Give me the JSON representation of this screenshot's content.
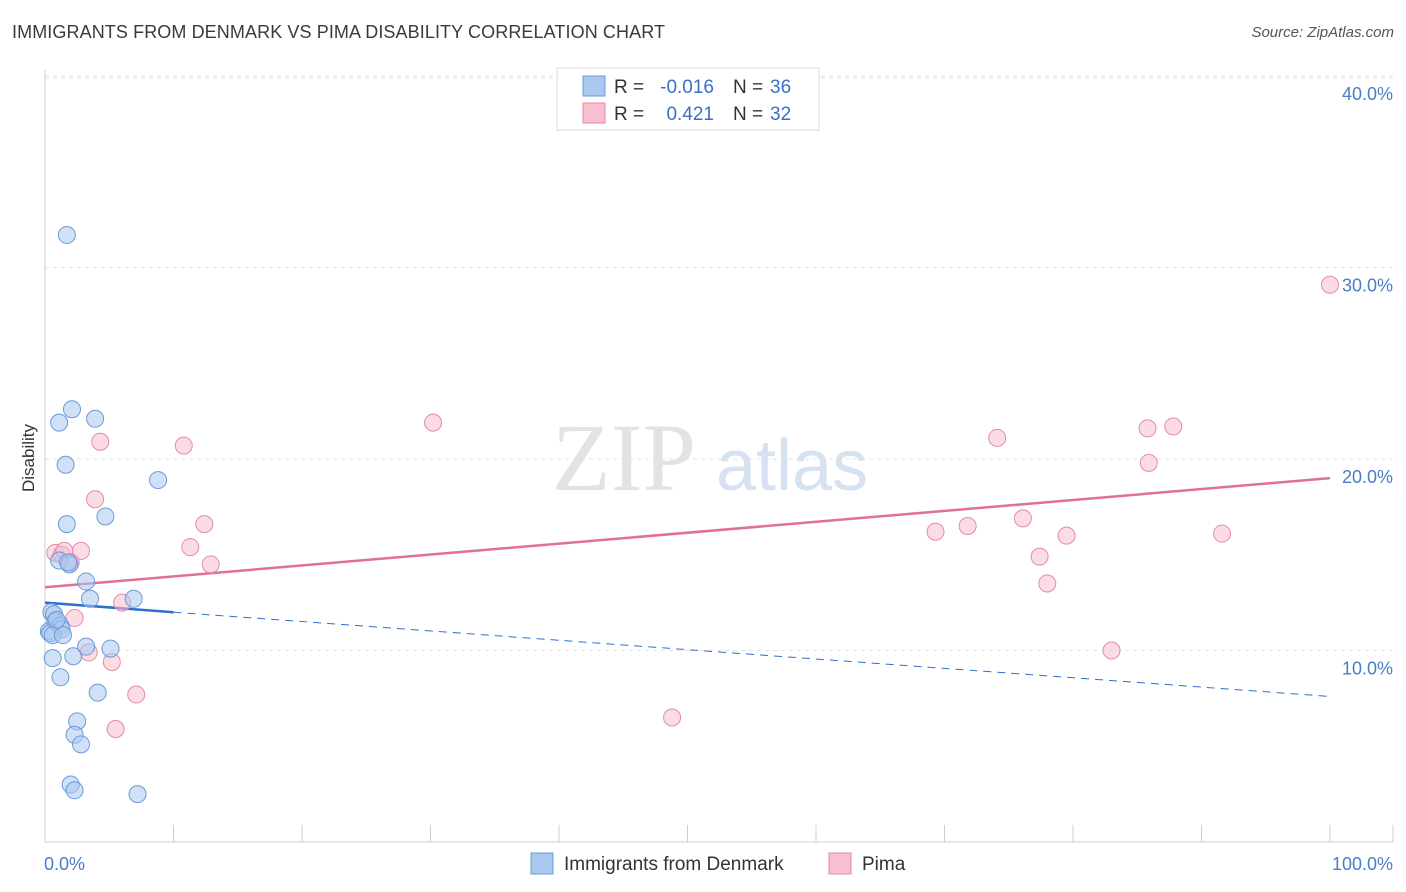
{
  "title": "IMMIGRANTS FROM DENMARK VS PIMA DISABILITY CORRELATION CHART",
  "source": "Source: ZipAtlas.com",
  "watermark": {
    "zip": "ZIP",
    "atlas": "atlas"
  },
  "colors": {
    "blue_fill": "#a9c8f0",
    "blue_stroke": "#6b9ad8",
    "blue_line": "#2e6fcc",
    "pink_fill": "#f7bfd0",
    "pink_stroke": "#e58aa8",
    "pink_line": "#e06f99",
    "grid": "#e2e2e2",
    "tick_label": "#4a7cc7"
  },
  "legend": {
    "rows": [
      {
        "r_label": "R =",
        "r_value": "-0.016",
        "n_label": "N =",
        "n_value": "36"
      },
      {
        "r_label": "R =",
        "r_value": "0.421",
        "n_label": "N =",
        "n_value": "32"
      }
    ]
  },
  "chart_data": {
    "type": "scatter",
    "title": "IMMIGRANTS FROM DENMARK VS PIMA DISABILITY CORRELATION CHART",
    "xlabel": "",
    "ylabel": "Disability",
    "xlim": [
      0,
      100
    ],
    "ylim": [
      0,
      41
    ],
    "x_tick_labels": [
      "0.0%",
      "100.0%"
    ],
    "y_ticks": [
      10,
      20,
      30,
      40
    ],
    "y_tick_labels": [
      "10.0%",
      "20.0%",
      "30.0%",
      "40.0%"
    ],
    "legend_position": "top-center",
    "series": [
      {
        "name": "Immigrants from Denmark",
        "r": -0.016,
        "n": 36,
        "points": [
          [
            1.7,
            31.7
          ],
          [
            2.1,
            22.6
          ],
          [
            3.9,
            22.1
          ],
          [
            1.1,
            21.9
          ],
          [
            1.6,
            19.7
          ],
          [
            8.8,
            18.9
          ],
          [
            1.7,
            16.6
          ],
          [
            4.7,
            17.0
          ],
          [
            1.1,
            14.7
          ],
          [
            1.9,
            14.5
          ],
          [
            1.8,
            14.6
          ],
          [
            3.2,
            13.6
          ],
          [
            3.5,
            12.7
          ],
          [
            6.9,
            12.7
          ],
          [
            0.5,
            12.0
          ],
          [
            0.7,
            11.9
          ],
          [
            0.8,
            11.5
          ],
          [
            1.2,
            11.3
          ],
          [
            1.3,
            11.1
          ],
          [
            0.3,
            11.0
          ],
          [
            0.4,
            10.9
          ],
          [
            0.6,
            10.8
          ],
          [
            1.4,
            10.8
          ],
          [
            3.2,
            10.2
          ],
          [
            5.1,
            10.1
          ],
          [
            2.2,
            9.7
          ],
          [
            0.6,
            9.6
          ],
          [
            1.2,
            8.6
          ],
          [
            4.1,
            7.8
          ],
          [
            2.5,
            6.3
          ],
          [
            2.3,
            5.6
          ],
          [
            2.8,
            5.1
          ],
          [
            2.0,
            3.0
          ],
          [
            2.3,
            2.7
          ],
          [
            7.2,
            2.5
          ],
          [
            0.9,
            11.6
          ]
        ],
        "trend_solid": {
          "x": [
            0,
            10
          ],
          "y": [
            12.5,
            12.0
          ]
        },
        "trend_dashed": {
          "x": [
            10,
            100
          ],
          "y": [
            12.0,
            7.6
          ]
        }
      },
      {
        "name": "Pima",
        "r": 0.421,
        "n": 32,
        "points": [
          [
            100,
            29.1
          ],
          [
            30.2,
            21.9
          ],
          [
            74.1,
            21.1
          ],
          [
            85.8,
            21.6
          ],
          [
            87.8,
            21.7
          ],
          [
            10.8,
            20.7
          ],
          [
            4.3,
            20.9
          ],
          [
            85.9,
            19.8
          ],
          [
            3.9,
            17.9
          ],
          [
            12.4,
            16.6
          ],
          [
            76.1,
            16.9
          ],
          [
            69.3,
            16.2
          ],
          [
            71.8,
            16.5
          ],
          [
            79.5,
            16.0
          ],
          [
            91.6,
            16.1
          ],
          [
            11.3,
            15.4
          ],
          [
            0.8,
            15.1
          ],
          [
            2.8,
            15.2
          ],
          [
            1.3,
            15.0
          ],
          [
            77.4,
            14.9
          ],
          [
            12.9,
            14.5
          ],
          [
            78.0,
            13.5
          ],
          [
            6.0,
            12.5
          ],
          [
            2.3,
            11.7
          ],
          [
            3.4,
            9.9
          ],
          [
            5.2,
            9.4
          ],
          [
            83.0,
            10.0
          ],
          [
            7.1,
            7.7
          ],
          [
            48.8,
            6.5
          ],
          [
            5.5,
            5.9
          ],
          [
            1.5,
            15.2
          ],
          [
            2.0,
            14.6
          ]
        ],
        "trend_solid": {
          "x": [
            0,
            100
          ],
          "y": [
            13.3,
            19.0
          ]
        }
      }
    ]
  },
  "bottom_legend": [
    {
      "label": "Immigrants from Denmark"
    },
    {
      "label": "Pima"
    }
  ]
}
